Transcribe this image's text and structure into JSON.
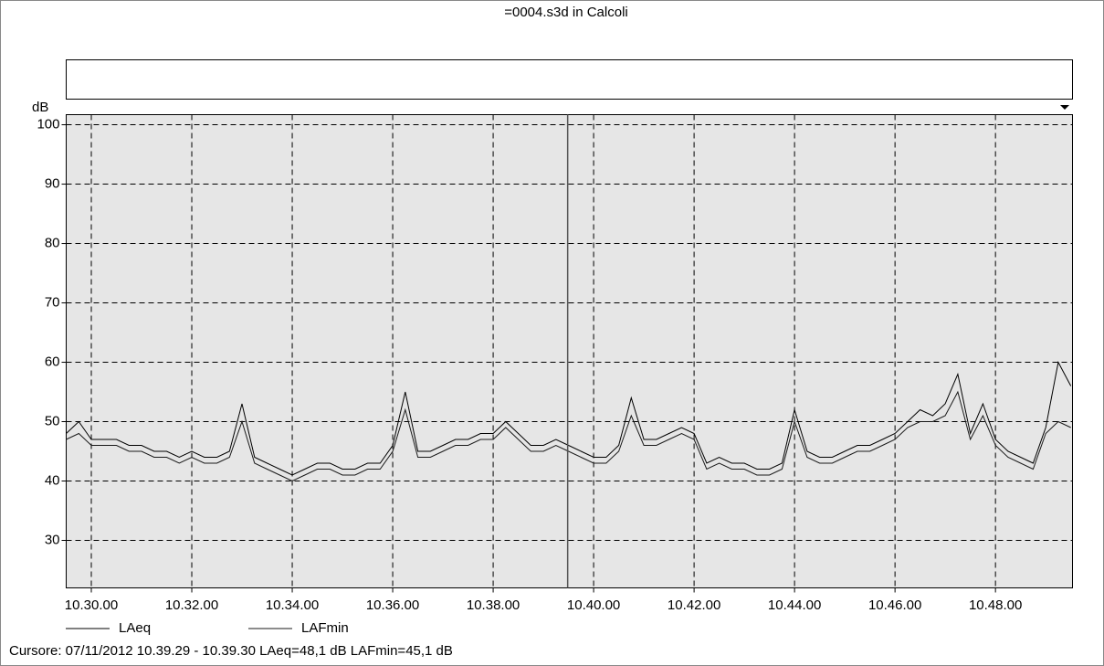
{
  "chart_data": {
    "type": "line",
    "title": "=0004.s3d in Calcoli",
    "ylabel": "dB",
    "x": [
      "10.29.30",
      "10.29.45",
      "10.30.00",
      "10.30.15",
      "10.30.30",
      "10.30.45",
      "10.31.00",
      "10.31.15",
      "10.31.30",
      "10.31.45",
      "10.32.00",
      "10.32.15",
      "10.32.30",
      "10.32.45",
      "10.33.00",
      "10.33.15",
      "10.33.30",
      "10.33.45",
      "10.34.00",
      "10.34.15",
      "10.34.30",
      "10.34.45",
      "10.35.00",
      "10.35.15",
      "10.35.30",
      "10.35.45",
      "10.36.00",
      "10.36.15",
      "10.36.30",
      "10.36.45",
      "10.37.00",
      "10.37.15",
      "10.37.30",
      "10.37.45",
      "10.38.00",
      "10.38.15",
      "10.38.30",
      "10.38.45",
      "10.39.00",
      "10.39.15",
      "10.39.30",
      "10.39.45",
      "10.40.00",
      "10.40.15",
      "10.40.30",
      "10.40.45",
      "10.41.00",
      "10.41.15",
      "10.41.30",
      "10.41.45",
      "10.42.00",
      "10.42.15",
      "10.42.30",
      "10.42.45",
      "10.43.00",
      "10.43.15",
      "10.43.30",
      "10.43.45",
      "10.44.00",
      "10.44.15",
      "10.44.30",
      "10.44.45",
      "10.45.00",
      "10.45.15",
      "10.45.30",
      "10.45.45",
      "10.46.00",
      "10.46.15",
      "10.46.30",
      "10.46.45",
      "10.47.00",
      "10.47.15",
      "10.47.30",
      "10.47.45",
      "10.48.00",
      "10.48.15",
      "10.48.30",
      "10.48.45",
      "10.49.00",
      "10.49.15",
      "10.49.30"
    ],
    "series": [
      {
        "name": "LAeq",
        "color": "#000000",
        "values": [
          48,
          50,
          47,
          47,
          47,
          46,
          46,
          45,
          45,
          44,
          45,
          44,
          44,
          45,
          53,
          44,
          43,
          42,
          41,
          42,
          43,
          43,
          42,
          42,
          43,
          43,
          46,
          55,
          45,
          45,
          46,
          47,
          47,
          48,
          48,
          50,
          48,
          46,
          46,
          47,
          46,
          45,
          44,
          44,
          46,
          54,
          47,
          47,
          48,
          49,
          48,
          43,
          44,
          43,
          43,
          42,
          42,
          43,
          52,
          45,
          44,
          44,
          45,
          46,
          46,
          47,
          48,
          50,
          52,
          51,
          53,
          58,
          48,
          53,
          47,
          45,
          44,
          43,
          49,
          60,
          56
        ]
      },
      {
        "name": "LAFmin",
        "color": "#1a1a1a",
        "values": [
          47,
          48,
          46,
          46,
          46,
          45,
          45,
          44,
          44,
          43,
          44,
          43,
          43,
          44,
          50,
          43,
          42,
          41,
          40,
          41,
          42,
          42,
          41,
          41,
          42,
          42,
          45,
          52,
          44,
          44,
          45,
          46,
          46,
          47,
          47,
          49,
          47,
          45,
          45,
          46,
          45,
          44,
          43,
          43,
          45,
          51,
          46,
          46,
          47,
          48,
          47,
          42,
          43,
          42,
          42,
          41,
          41,
          42,
          50,
          44,
          43,
          43,
          44,
          45,
          45,
          46,
          47,
          49,
          50,
          50,
          51,
          55,
          47,
          51,
          46,
          44,
          43,
          42,
          48,
          50,
          49
        ]
      }
    ],
    "xlim": [
      "10.29.30",
      "10.49.32"
    ],
    "xticks": [
      "10.30.00",
      "10.32.00",
      "10.34.00",
      "10.36.00",
      "10.38.00",
      "10.40.00",
      "10.42.00",
      "10.44.00",
      "10.46.00",
      "10.48.00"
    ],
    "ylim": [
      22,
      101.7
    ],
    "yticks": [
      30,
      40,
      50,
      60,
      70,
      80,
      90,
      100
    ],
    "grid": true,
    "cursor": "10.39.29",
    "status": "Cursore: 07/11/2012 10.39.29 - 10.39.30  LAeq=48,1 dB  LAFmin=45,1 dB"
  }
}
